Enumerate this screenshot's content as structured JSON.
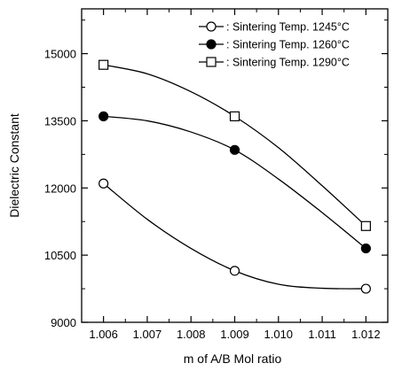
{
  "chart_data": {
    "type": "line",
    "title": "",
    "xlabel": "m of A/B Mol ratio",
    "ylabel": "Dielectric Constant",
    "xlim": [
      1.0055,
      1.0125
    ],
    "ylim": [
      9000,
      16000
    ],
    "x_ticks": [
      1.006,
      1.007,
      1.008,
      1.009,
      1.01,
      1.011,
      1.012
    ],
    "x_tick_labels": [
      "1.006",
      "1.007",
      "1.008",
      "1.009",
      "1.010",
      "1.011",
      "1.012"
    ],
    "y_ticks": [
      9000,
      10500,
      12000,
      13500,
      15000
    ],
    "y_tick_labels": [
      "9000",
      "10500",
      "12000",
      "13500",
      "15000"
    ],
    "grid": false,
    "legend_position": "top-right",
    "series": [
      {
        "name": ": Sintering Temp. 1245°C",
        "marker": "open-circle",
        "x": [
          1.006,
          1.009,
          1.012
        ],
        "y": [
          12100,
          10150,
          9750
        ],
        "curve_x": [
          1.006,
          1.007,
          1.008,
          1.009,
          1.01,
          1.011,
          1.012
        ],
        "curve_y": [
          12100,
          11300,
          10650,
          10150,
          9850,
          9760,
          9750
        ]
      },
      {
        "name": ": Sintering Temp. 1260°C",
        "marker": "filled-circle",
        "x": [
          1.006,
          1.009,
          1.012
        ],
        "y": [
          13600,
          12850,
          10650
        ],
        "curve_x": [
          1.006,
          1.007,
          1.008,
          1.009,
          1.01,
          1.011,
          1.012
        ],
        "curve_y": [
          13600,
          13500,
          13250,
          12850,
          12200,
          11450,
          10650
        ]
      },
      {
        "name": ": Sintering Temp. 1290°C",
        "marker": "open-square",
        "x": [
          1.006,
          1.009,
          1.012
        ],
        "y": [
          14750,
          13600,
          11150
        ],
        "curve_x": [
          1.006,
          1.007,
          1.008,
          1.009,
          1.01,
          1.011,
          1.012
        ],
        "curve_y": [
          14750,
          14550,
          14150,
          13600,
          12900,
          12050,
          11150
        ]
      }
    ]
  }
}
